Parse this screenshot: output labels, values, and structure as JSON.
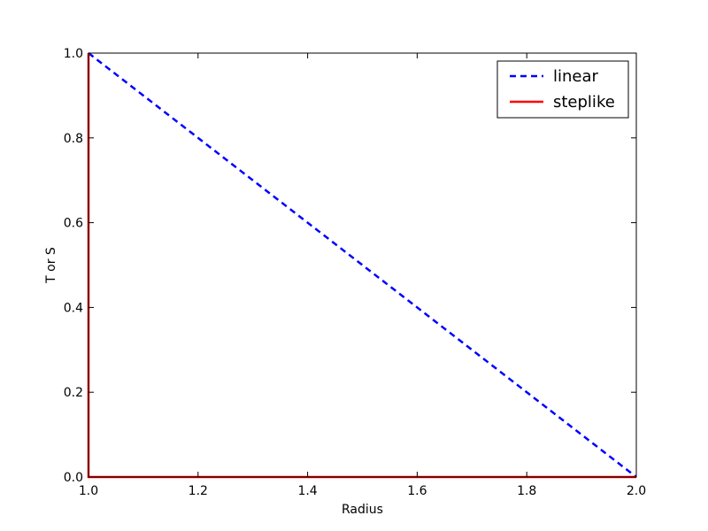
{
  "chart_data": {
    "type": "line",
    "title": "",
    "xlabel": "Radius",
    "ylabel": "T or S",
    "xlim": [
      1.0,
      2.0
    ],
    "ylim": [
      0.0,
      1.0
    ],
    "x_ticks": [
      "1.0",
      "1.2",
      "1.4",
      "1.6",
      "1.8",
      "2.0"
    ],
    "y_ticks": [
      "0.0",
      "0.2",
      "0.4",
      "0.6",
      "0.8",
      "1.0"
    ],
    "grid": false,
    "legend_position": "top-right",
    "series": [
      {
        "name": "linear",
        "color": "#0000ff",
        "style": "dashed",
        "x": [
          1.0,
          2.0
        ],
        "y": [
          1.0,
          0.0
        ]
      },
      {
        "name": "steplike",
        "color": "#ff0000",
        "style": "solid",
        "x": [
          1.0,
          1.0,
          2.0
        ],
        "y": [
          1.0,
          0.0,
          0.0
        ]
      }
    ]
  }
}
